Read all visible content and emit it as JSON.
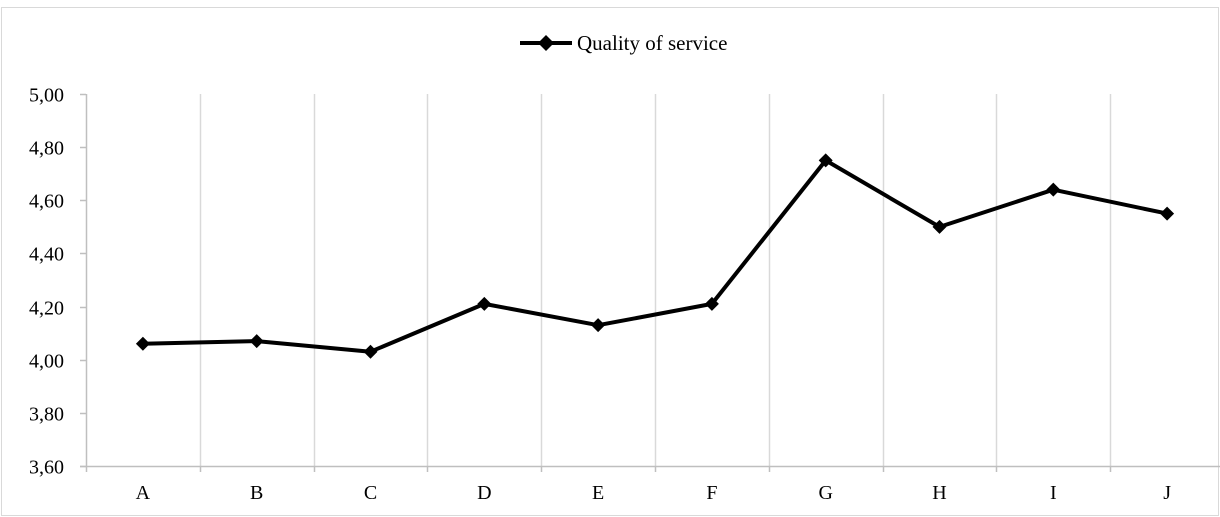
{
  "chart_data": {
    "type": "line",
    "categories": [
      "A",
      "B",
      "C",
      "D",
      "E",
      "F",
      "G",
      "H",
      "I",
      "J"
    ],
    "series": [
      {
        "name": "Quality of service",
        "values": [
          4.06,
          4.07,
          4.03,
          4.21,
          4.13,
          4.21,
          4.75,
          4.5,
          4.64,
          4.55
        ],
        "color": "#000000",
        "marker": "diamond"
      }
    ],
    "ylim": [
      3.6,
      5.0
    ],
    "yticks": [
      "3,60",
      "3,80",
      "4,00",
      "4,20",
      "4,40",
      "4,60",
      "4,80",
      "5,00"
    ],
    "ytick_values": [
      3.6,
      3.8,
      4.0,
      4.2,
      4.4,
      4.6,
      4.8,
      5.0
    ],
    "grid": "vertical",
    "legend_position": "top-center",
    "colors": {
      "line": "#000000",
      "grid": "#d9d9d9",
      "axis": "#bfbfbf",
      "border": "#d9d9d9"
    }
  }
}
